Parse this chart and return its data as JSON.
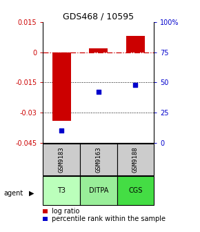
{
  "title": "GDS468 / 10595",
  "samples": [
    "GSM9183",
    "GSM9163",
    "GSM9188"
  ],
  "agents": [
    "T3",
    "DITPA",
    "CGS"
  ],
  "log_ratios": [
    -0.034,
    0.002,
    0.008
  ],
  "percentile_ranks": [
    0.1,
    0.42,
    0.48
  ],
  "ylim_left": [
    -0.045,
    0.015
  ],
  "ylim_right": [
    0.0,
    1.0
  ],
  "yticks_left": [
    0.015,
    0.0,
    -0.015,
    -0.03,
    -0.045
  ],
  "ytick_labels_left": [
    "0.015",
    "0",
    "-0.015",
    "-0.03",
    "-0.045"
  ],
  "yticks_right": [
    1.0,
    0.75,
    0.5,
    0.25,
    0.0
  ],
  "ytick_labels_right": [
    "100%",
    "75",
    "50",
    "25",
    "0"
  ],
  "bar_color": "#cc0000",
  "dot_color": "#0000cc",
  "agent_colors": [
    "#bbffbb",
    "#99ee99",
    "#44dd44"
  ],
  "sample_bg": "#cccccc",
  "zero_line_color": "#cc0000",
  "legend_bar_label": "log ratio",
  "legend_dot_label": "percentile rank within the sample",
  "bar_width": 0.5
}
